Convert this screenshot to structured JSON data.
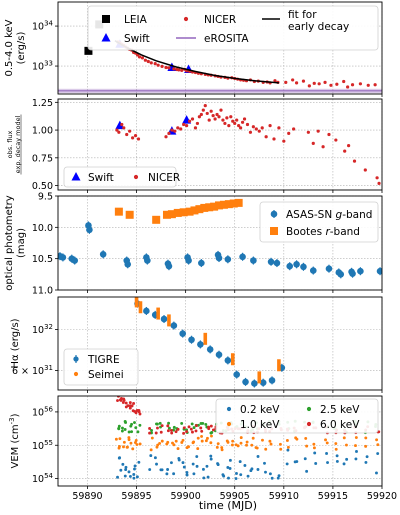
{
  "chart_data": [
    {
      "id": "p1",
      "type": "scatter",
      "ylabel_lines": [
        "0.5-4.0 keV",
        "(erg/s)"
      ],
      "yscale": "log",
      "ylim": [
        2e+32,
        4e+34
      ],
      "yticks": [
        {
          "v": 1e+33,
          "label": "10",
          "exp": "33"
        },
        {
          "v": 1e+34,
          "label": "10",
          "exp": "34"
        }
      ],
      "xlim": [
        59887,
        59920
      ],
      "grid": true,
      "legend": {
        "position": "top",
        "ncol": 3,
        "entries": [
          {
            "label": "LEIA",
            "marker": "square",
            "color": "#000000"
          },
          {
            "label": "NICER",
            "marker": "dot",
            "color": "#d62728"
          },
          {
            "label": "fit for\nearly decay",
            "marker": "line",
            "color": "#000000"
          },
          {
            "label": "Swift",
            "marker": "triangle",
            "color": "#0000ff"
          },
          {
            "label": "eROSITA",
            "marker": "band",
            "color": "#9467bd"
          }
        ]
      },
      "series": [
        {
          "name": "LEIA",
          "marker": "square",
          "color": "#000000",
          "x": [
            59890.1,
            59891.2
          ],
          "y": [
            2.4e+33,
            1.1e+34
          ]
        },
        {
          "name": "Swift",
          "marker": "triangle",
          "color": "#0000ff",
          "x": [
            59893.3,
            59898.6,
            59900.3
          ],
          "y": [
            3.5e+33,
            9.2e+32,
            8.2e+32
          ]
        },
        {
          "name": "NICER",
          "marker": "dot",
          "color": "#d62728",
          "x": [
            59893.1,
            59893.3,
            59893.5,
            59893.7,
            59893.9,
            59894.1,
            59894.3,
            59894.5,
            59894.7,
            59894.9,
            59895.1,
            59895.3,
            59895.6,
            59895.9,
            59896.2,
            59896.5,
            59896.9,
            59897.2,
            59897.6,
            59898.0,
            59898.3,
            59898.8,
            59899.1,
            59899.3,
            59899.6,
            59899.9,
            59900.1,
            59900.4,
            59900.7,
            59901.0,
            59901.3,
            59901.6,
            59902.0,
            59902.3,
            59902.6,
            59903.0,
            59903.3,
            59903.6,
            59904.0,
            59904.3,
            59904.7,
            59905.0,
            59905.3,
            59905.6,
            59905.9,
            59906.2,
            59906.6,
            59907.0,
            59907.4,
            59907.9,
            59908.3,
            59908.6,
            59909.1,
            59909.4,
            59910.2,
            59910.9,
            59911.3,
            59912.0,
            59912.6,
            59913.1,
            59913.6,
            59914.2,
            59914.8,
            59915.4,
            59916.1,
            59916.5,
            59917.0,
            59917.8,
            59918.6,
            59919.3
          ],
          "y": [
            4e+33,
            3.8e+33,
            3.5e+33,
            3.3e+33,
            3e+33,
            2.8e+33,
            2.6e+33,
            2.5e+33,
            2.2e+33,
            2.1e+33,
            1.9e+33,
            1.7e+33,
            1.6e+33,
            1.4e+33,
            1.3e+33,
            1.2e+33,
            1.15e+33,
            1.05e+33,
            9.8e+32,
            9.2e+32,
            9e+32,
            8.5e+32,
            8.2e+32,
            8e+32,
            7.8e+32,
            8.3e+32,
            7.6e+32,
            7.4e+32,
            7.1e+32,
            6.9e+32,
            6.6e+32,
            6.4e+32,
            6.2e+32,
            6e+32,
            5.9e+32,
            5.7e+32,
            5.5e+32,
            5.3e+32,
            5.2e+32,
            5e+32,
            5.1e+32,
            4.9e+32,
            4.7e+32,
            4.5e+32,
            4.4e+32,
            4.3e+32,
            4.5e+32,
            4.1e+32,
            4.2e+32,
            3.9e+32,
            4e+32,
            3.8e+32,
            4.3e+32,
            3.9e+32,
            3.9e+32,
            4.5e+32,
            3.8e+32,
            4.2e+32,
            3.2e+32,
            3.7e+32,
            3.6e+32,
            3.9e+32,
            3.3e+32,
            3.5e+32,
            4.1e+32,
            3e+32,
            3.4e+32,
            3.6e+32,
            3.3e+32,
            3.4e+32
          ]
        },
        {
          "name": "fit for early decay",
          "marker": "line",
          "color": "#000000",
          "x": [
            59892.8,
            59894,
            59895.5,
            59897,
            59899,
            59901,
            59903,
            59905,
            59907,
            59909.5
          ],
          "y": [
            4.3e+33,
            2.9e+33,
            1.9e+33,
            1.35e+33,
            9.5e+32,
            7.3e+32,
            5.8e+32,
            4.9e+32,
            4.3e+32,
            3.8e+32
          ]
        }
      ],
      "band": {
        "name": "eROSITA",
        "color": "#9467bd",
        "y": [
          2.1e+32,
          2.7e+32
        ],
        "center": 2.4e+32
      }
    },
    {
      "id": "p2",
      "type": "scatter",
      "ylabel_lines": [
        "obs. flux",
        "exp. decay model"
      ],
      "yscale": "linear",
      "ylim": [
        0.46,
        1.28
      ],
      "yticks": [
        {
          "v": 0.5,
          "label": "0.50"
        },
        {
          "v": 0.75,
          "label": "0.75"
        },
        {
          "v": 1.0,
          "label": "1.00"
        },
        {
          "v": 1.25,
          "label": "1.25"
        }
      ],
      "xlim": [
        59887,
        59920
      ],
      "grid": true,
      "legend": {
        "position": "lower-left",
        "ncol": 2,
        "entries": [
          {
            "label": "Swift",
            "marker": "triangle",
            "color": "#0000ff"
          },
          {
            "label": "NICER",
            "marker": "dot",
            "color": "#d62728"
          }
        ]
      },
      "series": [
        {
          "name": "Swift",
          "marker": "triangle",
          "color": "#0000ff",
          "x": [
            59893.3,
            59898.6,
            59900.1
          ],
          "y": [
            1.04,
            0.99,
            1.09
          ]
        },
        {
          "name": "NICER",
          "marker": "dot",
          "color": "#d62728",
          "x": [
            59893.0,
            59893.2,
            59893.5,
            59893.7,
            59894.0,
            59894.3,
            59894.6,
            59894.9,
            59895.2,
            59898.0,
            59898.3,
            59898.6,
            59898.9,
            59899.2,
            59899.5,
            59899.8,
            59900.1,
            59900.4,
            59900.7,
            59901.0,
            59901.2,
            59901.4,
            59901.6,
            59901.8,
            59902.0,
            59902.2,
            59902.4,
            59902.6,
            59902.8,
            59903.0,
            59903.2,
            59903.4,
            59903.6,
            59903.8,
            59904.0,
            59904.2,
            59904.4,
            59904.6,
            59904.8,
            59905.0,
            59905.2,
            59905.4,
            59905.6,
            59905.8,
            59906.0,
            59906.3,
            59906.6,
            59906.9,
            59907.2,
            59907.5,
            59907.8,
            59908.2,
            59908.6,
            59909.0,
            59909.5,
            59910.0,
            59910.5,
            59911.0,
            59912.5,
            59913.0,
            59913.5,
            59914.0,
            59914.6,
            59915.3,
            59916.2,
            59916.6,
            59917.2,
            59918.3,
            59919.5,
            59919.7
          ],
          "y": [
            1.0,
            0.98,
            1.05,
            1.02,
            0.96,
            0.99,
            0.93,
            0.95,
            0.92,
            0.94,
            0.97,
            1.0,
            0.99,
            1.02,
            1.01,
            1.05,
            1.04,
            1.08,
            1.1,
            1.02,
            1.06,
            1.12,
            1.14,
            1.18,
            1.22,
            1.15,
            1.09,
            1.17,
            1.13,
            1.1,
            1.14,
            1.12,
            1.18,
            1.09,
            1.06,
            1.11,
            1.04,
            1.12,
            1.08,
            1.06,
            1.09,
            1.04,
            1.02,
            1.07,
            1.1,
            1.05,
            0.98,
            1.03,
            1.01,
            0.99,
            1.02,
            0.94,
            1.04,
            0.92,
            1.02,
            0.9,
            0.97,
            1.01,
            0.98,
            0.88,
            0.99,
            0.85,
            0.96,
            0.91,
            0.81,
            0.86,
            0.72,
            0.64,
            0.57,
            0.52
          ]
        }
      ]
    },
    {
      "id": "p3",
      "type": "scatter",
      "ylabel_lines": [
        "optical photometry",
        "(mag)"
      ],
      "yscale": "linear",
      "inverted": true,
      "ylim": [
        11.0,
        9.5
      ],
      "yticks": [
        {
          "v": 9.5,
          "label": "9.5"
        },
        {
          "v": 10.0,
          "label": "10.0"
        },
        {
          "v": 10.5,
          "label": "10.5"
        },
        {
          "v": 11.0,
          "label": "11.0"
        }
      ],
      "xlim": [
        59887,
        59920
      ],
      "grid": true,
      "legend": {
        "position": "upper-right",
        "ncol": 1,
        "entries": [
          {
            "label": "ASAS-SN ",
            "label_italic": "g",
            "label_suffix": "-band",
            "marker": "dot-err",
            "color": "#1f77b4"
          },
          {
            "label": "Bootes ",
            "label_italic": "r",
            "label_suffix": "-band",
            "marker": "square",
            "color": "#ff7f0e"
          }
        ]
      },
      "series": [
        {
          "name": "ASAS-SN g-band",
          "marker": "dot-err",
          "color": "#1f77b4",
          "x": [
            59887.2,
            59887.5,
            59888.4,
            59888.7,
            59890.1,
            59890.2,
            59891.6,
            59894.0,
            59894.1,
            59896.0,
            59896.1,
            59898.2,
            59898.3,
            59900.2,
            59900.3,
            59901.6,
            59903.3,
            59903.4,
            59904.3,
            59905.8,
            59906.9,
            59908.7,
            59909.3,
            59910.6,
            59911.3,
            59912.0,
            59913.0,
            59914.6,
            59915.6,
            59915.8,
            59916.9,
            59917.0,
            59917.8,
            59919.8
          ],
          "y": [
            10.46,
            10.48,
            10.5,
            10.53,
            9.97,
            10.04,
            10.43,
            10.53,
            10.59,
            10.48,
            10.53,
            10.58,
            10.62,
            10.48,
            10.53,
            10.57,
            10.44,
            10.49,
            10.51,
            10.47,
            10.53,
            10.55,
            10.57,
            10.62,
            10.59,
            10.63,
            10.69,
            10.66,
            10.72,
            10.75,
            10.71,
            10.74,
            10.7,
            10.7
          ]
        },
        {
          "name": "Bootes r-band",
          "marker": "square",
          "color": "#ff7f0e",
          "x": [
            59893.2,
            59894.3,
            59897.0,
            59898.1,
            59898.6,
            59899.2,
            59899.8,
            59900.4,
            59900.9,
            59901.4,
            59901.9,
            59902.4,
            59902.9,
            59903.4,
            59903.9,
            59904.4,
            59904.9,
            59905.4
          ],
          "y": [
            9.75,
            9.8,
            9.88,
            9.8,
            9.79,
            9.77,
            9.76,
            9.75,
            9.73,
            9.71,
            9.69,
            9.68,
            9.67,
            9.65,
            9.64,
            9.63,
            9.62,
            9.61
          ]
        }
      ]
    },
    {
      "id": "p4",
      "type": "scatter",
      "ylabel_lines": [
        "Hα (erg/s)"
      ],
      "yscale": "log",
      "ylim": [
        4.7e+31,
        1.5e+32
      ],
      "yticks": [
        {
          "v": 6e+31,
          "label": "6 × 10",
          "exp": "31"
        },
        {
          "v": 1e+32,
          "label": "10",
          "exp": "32"
        }
      ],
      "xlim": [
        59887,
        59920
      ],
      "grid": true,
      "legend": {
        "position": "lower-left",
        "ncol": 1,
        "entries": [
          {
            "label": "TIGRE",
            "marker": "dot-err",
            "color": "#1f77b4"
          },
          {
            "label": "Seimei",
            "marker": "dot",
            "color": "#ff7f0e"
          }
        ]
      },
      "series": [
        {
          "name": "TIGRE",
          "marker": "dot-err",
          "color": "#1f77b4",
          "x": [
            59895.1,
            59896.0,
            59896.9,
            59897.8,
            59898.8,
            59899.7,
            59900.6,
            59901.5,
            59902.5,
            59903.4,
            59904.3,
            59905.2,
            59906.1,
            59907.0,
            59907.9,
            59908.8,
            59909.8
          ],
          "y": [
            1.38e+32,
            1.26e+32,
            1.2e+32,
            1.14e+32,
            1.05e+32,
            9.5e+31,
            8.8e+31,
            8.3e+31,
            7.8e+31,
            7.3e+31,
            6.8e+31,
            5.7e+31,
            5.2e+31,
            5.1e+31,
            5.15e+31,
            5.3e+31,
            6.2e+31
          ]
        },
        {
          "name": "Seimei",
          "marker": "errbar",
          "color": "#ff7f0e",
          "x": [
            59895.0,
            59895.4,
            59897.2,
            59898.3,
            59902.0,
            59904.8,
            59907.5,
            59909.5
          ],
          "y": [
            1.42e+32,
            1.32e+32,
            1.22e+32,
            1.12e+32,
            8.9e+31,
            6.9e+31,
            5.5e+31,
            6.4e+31
          ]
        }
      ]
    },
    {
      "id": "p5",
      "type": "scatter",
      "ylabel_lines": [
        "VEM (cm",
        "-3",
        ")"
      ],
      "yscale": "log",
      "ylim": [
        6e+53,
        3e+56
      ],
      "yticks": [
        {
          "v": 1e+54,
          "label": "10",
          "exp": "54"
        },
        {
          "v": 1e+55,
          "label": "10",
          "exp": "55"
        },
        {
          "v": 1e+56,
          "label": "10",
          "exp": "56"
        }
      ],
      "xlim": [
        59887,
        59920
      ],
      "xticks": [
        59890,
        59895,
        59900,
        59905,
        59910,
        59915,
        59920
      ],
      "xlabel": "time (MJD)",
      "grid": true,
      "legend": {
        "position": "upper-right",
        "ncol": 2,
        "entries": [
          {
            "label": "0.2 keV",
            "marker": "dot",
            "color": "#1f77b4"
          },
          {
            "label": "2.5 keV",
            "marker": "dot",
            "color": "#2ca02c"
          },
          {
            "label": "1.0 keV",
            "marker": "dot",
            "color": "#ff7f0e"
          },
          {
            "label": "6.0 keV",
            "marker": "dot",
            "color": "#d62728"
          }
        ]
      },
      "series": [
        {
          "name": "0.2 keV",
          "marker": "dot",
          "color": "#1f77b4",
          "center": 2.2e+54,
          "spread": 0.35
        },
        {
          "name": "1.0 keV",
          "marker": "dot",
          "color": "#ff7f0e",
          "center": 1.2e+55,
          "spread": 0.22
        },
        {
          "name": "2.5 keV",
          "marker": "dot",
          "color": "#2ca02c",
          "center": 3.5e+55,
          "spread": 0.18
        },
        {
          "name": "6.0 keV",
          "marker": "dot",
          "color": "#d62728",
          "center": 3e+55,
          "spread": 0.12,
          "early": 2.8e+56
        }
      ],
      "x_samples": [
        59893.1,
        59893.4,
        59893.7,
        59894.0,
        59894.3,
        59894.6,
        59894.9,
        59895.2,
        59896.5,
        59897.0,
        59897.5,
        59898.2,
        59898.7,
        59899.2,
        59899.7,
        59900.2,
        59900.7,
        59901.2,
        59901.7,
        59902.2,
        59902.7,
        59903.2,
        59903.7,
        59904.2,
        59904.7,
        59905.2,
        59905.7,
        59906.2,
        59906.8,
        59907.3,
        59908.0,
        59908.7,
        59909.6,
        59910.4,
        59911.2,
        59912.2,
        59913.1,
        59914.4,
        59915.3,
        59916.3,
        59917.4,
        59918.4,
        59919.5
      ]
    }
  ]
}
